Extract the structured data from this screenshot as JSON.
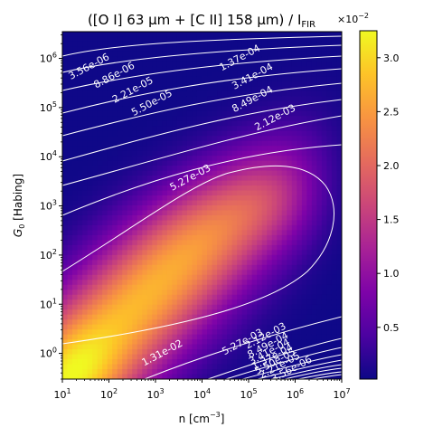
{
  "chart_data": {
    "type": "heatmap",
    "title": "([O I] 63 μm + [C II] 158 μm) / I",
    "title_subscript": "FIR",
    "xlabel_main": "n [cm",
    "xlabel_sup": "−3",
    "xlabel_end": "]",
    "ylabel_sym": "G",
    "ylabel_sub": "0",
    "ylabel_rest": " [Habing]",
    "x_scale": "log",
    "y_scale": "log",
    "xlim": [
      10,
      10000000
    ],
    "ylim": [
      0.3,
      3500000
    ],
    "x_ticks": [
      {
        "base": "10",
        "exp": "1",
        "value": 10
      },
      {
        "base": "10",
        "exp": "2",
        "value": 100
      },
      {
        "base": "10",
        "exp": "3",
        "value": 1000
      },
      {
        "base": "10",
        "exp": "4",
        "value": 10000
      },
      {
        "base": "10",
        "exp": "5",
        "value": 100000
      },
      {
        "base": "10",
        "exp": "6",
        "value": 1000000
      },
      {
        "base": "10",
        "exp": "7",
        "value": 10000000
      }
    ],
    "y_ticks": [
      {
        "base": "10",
        "exp": "0",
        "value": 1
      },
      {
        "base": "10",
        "exp": "1",
        "value": 10
      },
      {
        "base": "10",
        "exp": "2",
        "value": 100
      },
      {
        "base": "10",
        "exp": "3",
        "value": 1000
      },
      {
        "base": "10",
        "exp": "4",
        "value": 10000
      },
      {
        "base": "10",
        "exp": "5",
        "value": 100000
      },
      {
        "base": "10",
        "exp": "6",
        "value": 1000000
      }
    ],
    "colormap": "plasma",
    "colorbar": {
      "multiplier_base": "×10",
      "multiplier_exp": "−2",
      "range": [
        0.02,
        3.25
      ],
      "ticks": [
        {
          "label": "0.5",
          "value": 0.5
        },
        {
          "label": "1.0",
          "value": 1.0
        },
        {
          "label": "1.5",
          "value": 1.5
        },
        {
          "label": "2.0",
          "value": 2.0
        },
        {
          "label": "2.5",
          "value": 2.5
        },
        {
          "label": "3.0",
          "value": 3.0
        }
      ]
    },
    "contour_labels": [
      {
        "text": "3.56e-06",
        "x": 40,
        "y": 600000
      },
      {
        "text": "8.86e-06",
        "x": 140,
        "y": 400000
      },
      {
        "text": "2.21e-05",
        "x": 350,
        "y": 200000
      },
      {
        "text": "5.50e-05",
        "x": 900,
        "y": 110000
      },
      {
        "text": "1.37e-04",
        "x": 70000,
        "y": 900000
      },
      {
        "text": "3.41e-04",
        "x": 130000,
        "y": 380000
      },
      {
        "text": "8.49e-04",
        "x": 130000,
        "y": 130000
      },
      {
        "text": "2.12e-03",
        "x": 400000,
        "y": 55000
      },
      {
        "text": "5.27e-03",
        "x": 6000,
        "y": 3300
      },
      {
        "text": "5.27e-03",
        "x": 80000,
        "y": 1.5
      },
      {
        "text": "1.31e-02",
        "x": 1500,
        "y": 0.9
      },
      {
        "text": "2.12e-03",
        "x": 250000,
        "y": 2
      },
      {
        "text": "8.49e-04",
        "x": 280000,
        "y": 1.3
      },
      {
        "text": "3.41e-04",
        "x": 300000,
        "y": 0.95
      },
      {
        "text": "1.37e-04",
        "x": 350000,
        "y": 0.75
      },
      {
        "text": "5.50e-05",
        "x": 400000,
        "y": 0.6
      },
      {
        "text": "2.21e-05",
        "x": 500000,
        "y": 0.5
      },
      {
        "text": "3.56e-06",
        "x": 900000,
        "y": 0.42
      }
    ]
  }
}
